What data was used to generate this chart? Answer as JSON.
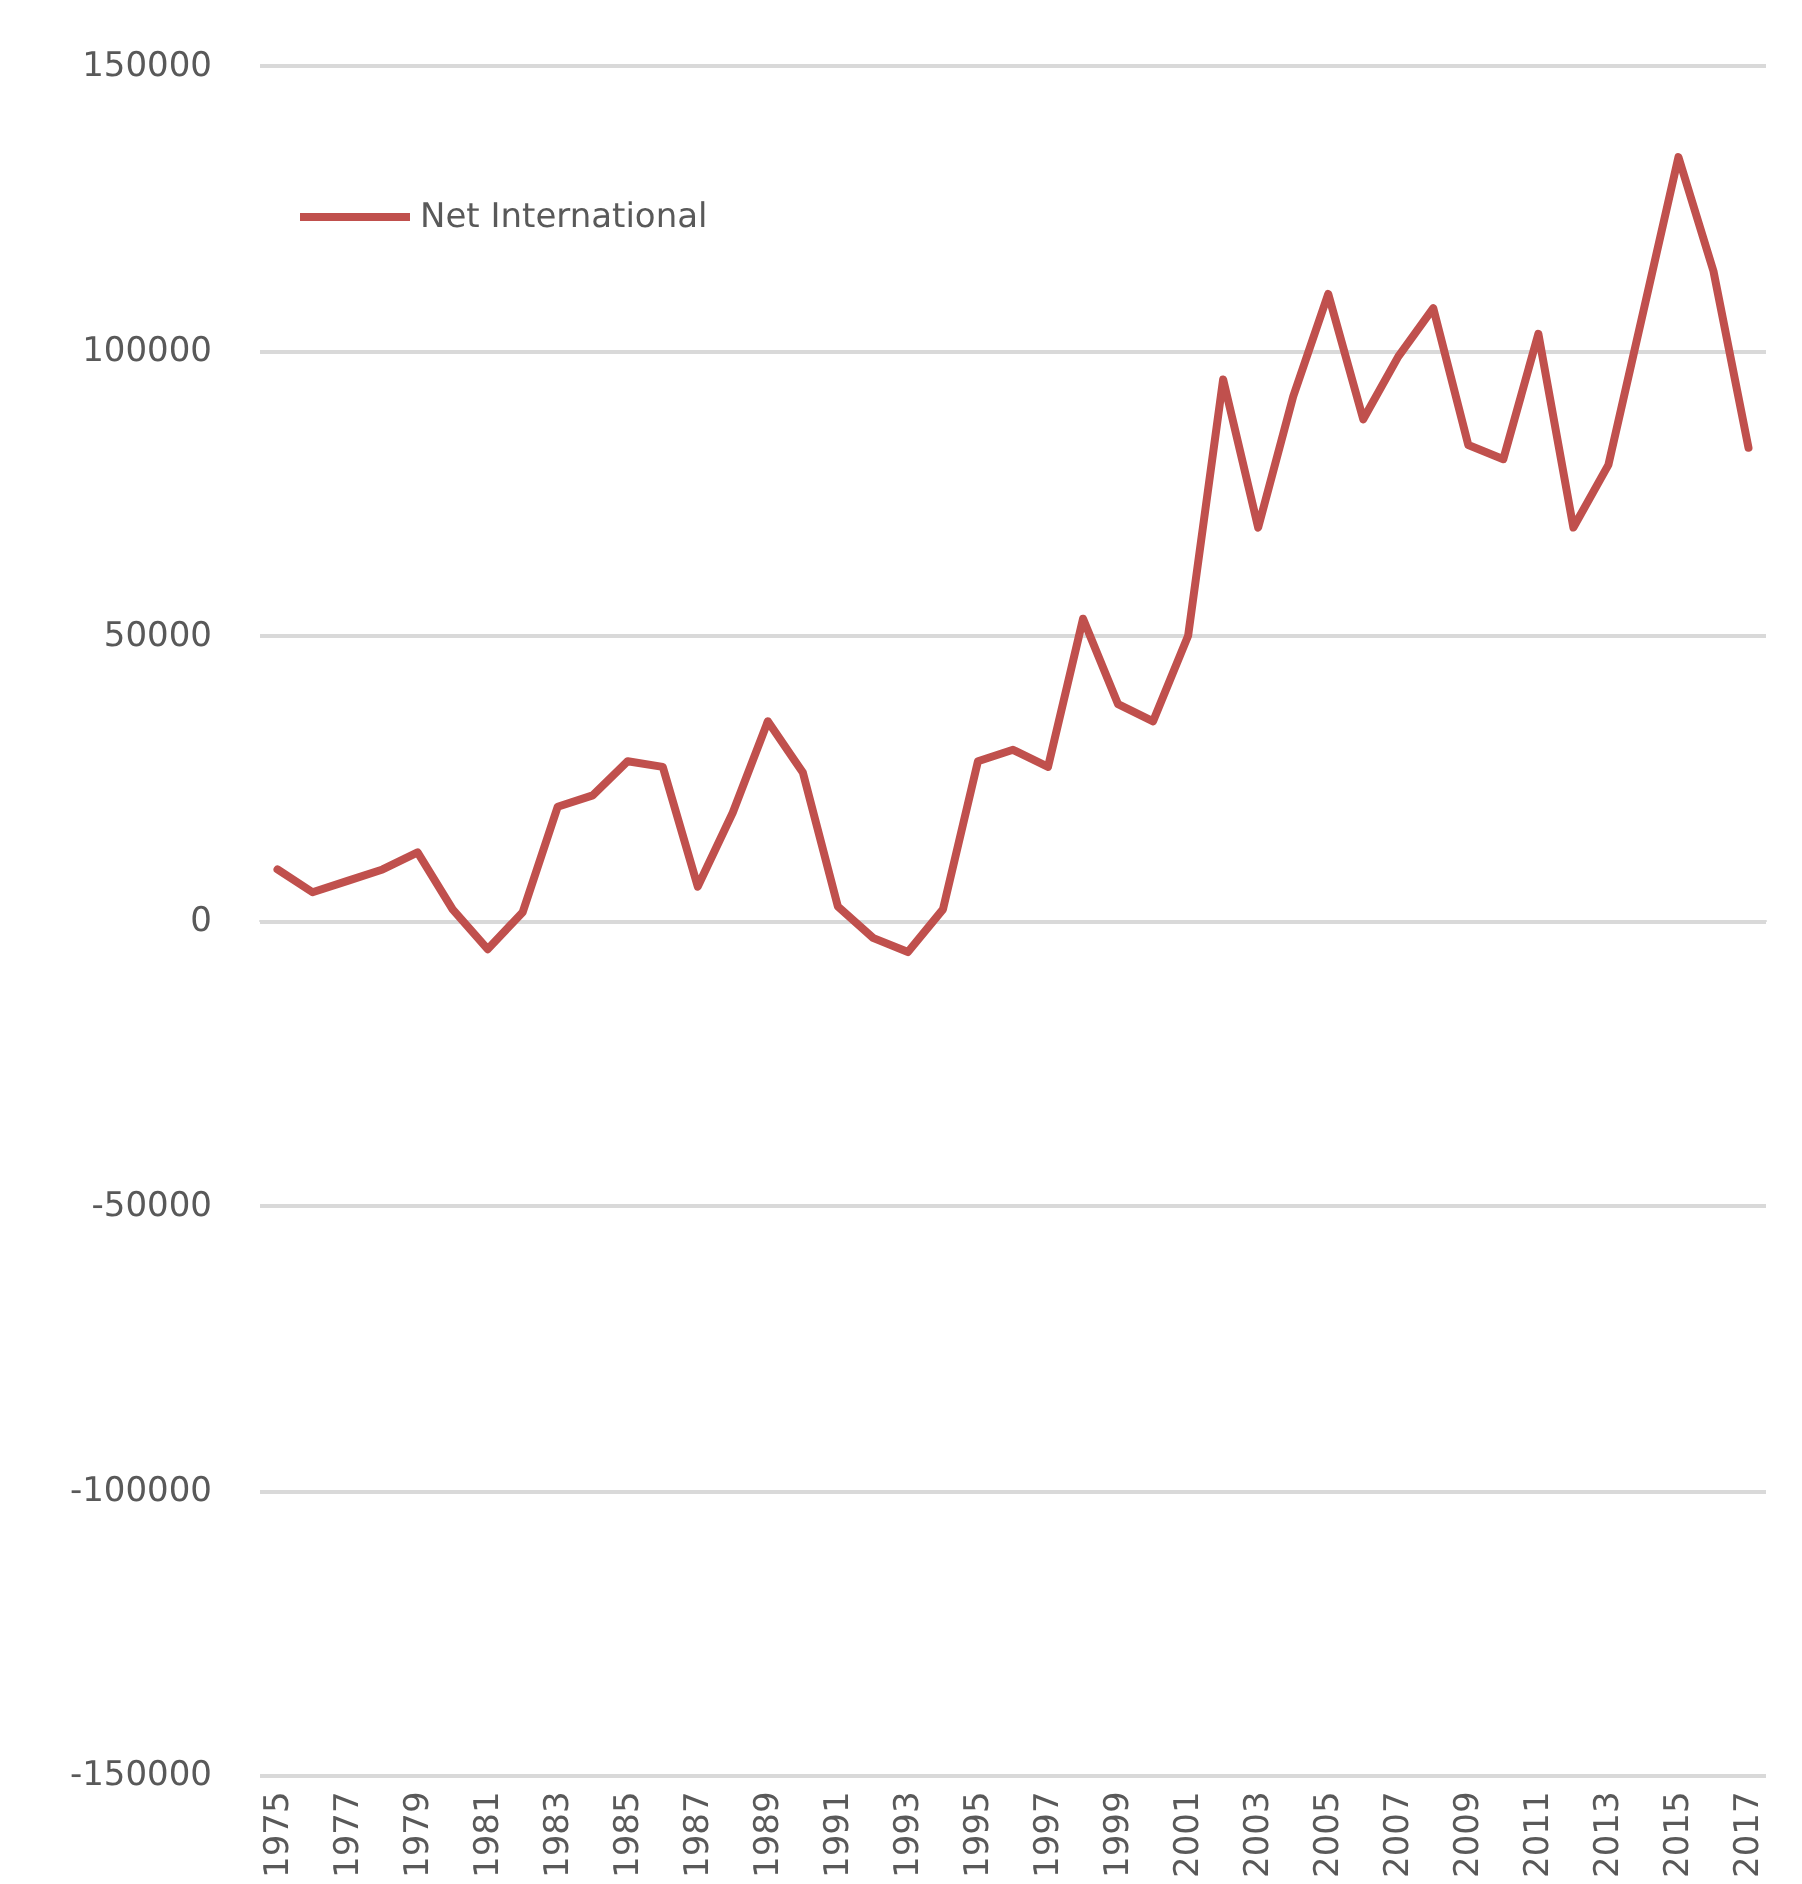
{
  "chart_data": {
    "type": "line",
    "categories": [
      "1975",
      null,
      "1977",
      null,
      "1979",
      null,
      "1981",
      null,
      "1983",
      null,
      "1985",
      null,
      "1987",
      null,
      "1989",
      null,
      "1991",
      null,
      "1993",
      null,
      "1995",
      null,
      "1997",
      null,
      "1999",
      null,
      "2001",
      null,
      "2003",
      null,
      "2005",
      null,
      "2007",
      null,
      "2009",
      null,
      "2011",
      null,
      "2013",
      null,
      "2015",
      null,
      "2017"
    ],
    "series": [
      {
        "name": "Net International",
        "color": "#c0504d",
        "values": [
          9000,
          5000,
          7000,
          9000,
          12000,
          2000,
          -5000,
          1500,
          20000,
          22000,
          28000,
          27000,
          6000,
          19000,
          35000,
          26000,
          2500,
          -3000,
          -5500,
          2000,
          28000,
          30000,
          27000,
          53000,
          38000,
          35000,
          50000,
          95000,
          69000,
          92000,
          110000,
          88000,
          99000,
          107500,
          83500,
          81000,
          103000,
          69000,
          80000,
          107000,
          134000,
          114000,
          83000
        ]
      }
    ],
    "ylim": [
      -150000,
      150000
    ],
    "yticks": [
      -150000,
      -100000,
      -50000,
      0,
      50000,
      100000,
      150000
    ],
    "grid": "y",
    "legend": "top left",
    "marker": "none",
    "line_style": "solid"
  }
}
